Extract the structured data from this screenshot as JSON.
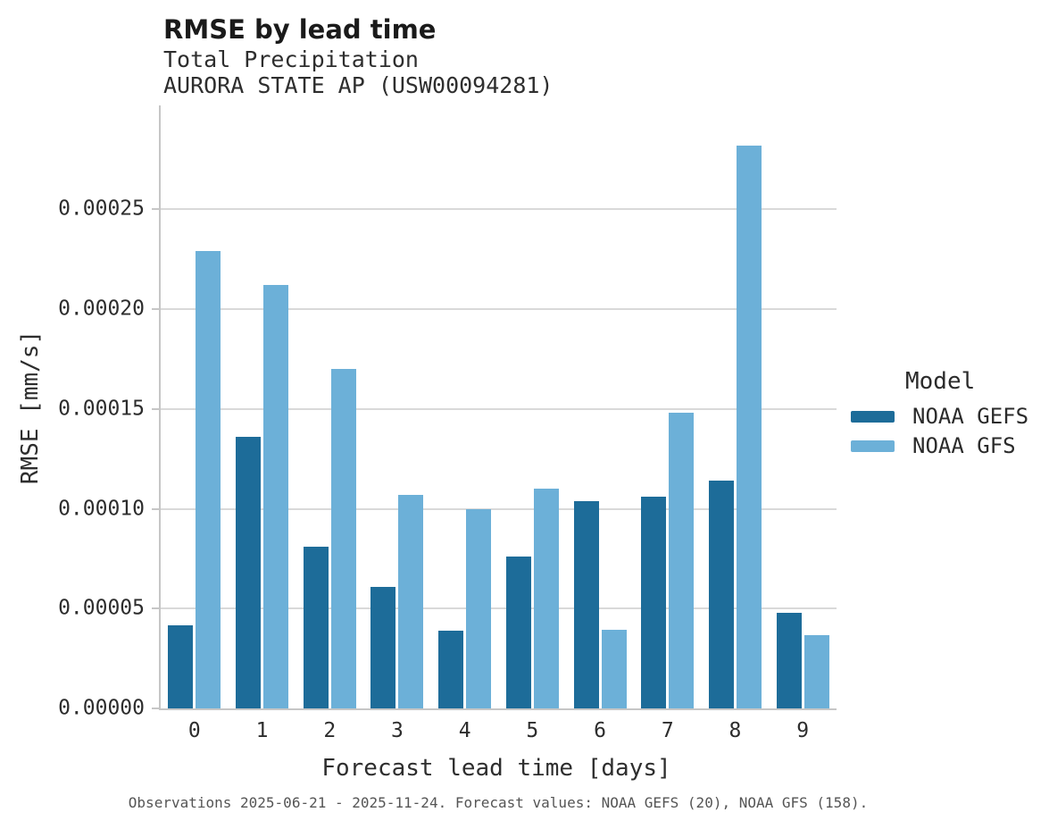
{
  "header": {
    "title": "RMSE by lead time",
    "subtitle": "Total Precipitation",
    "station": "AURORA STATE AP (USW00094281)"
  },
  "legend": {
    "title": "Model",
    "items": [
      {
        "label": "NOAA GEFS",
        "color": "#1d6c99"
      },
      {
        "label": "NOAA GFS",
        "color": "#6cb0d8"
      }
    ]
  },
  "footer": {
    "text": "Observations 2025-06-21 - 2025-11-24. Forecast values: NOAA GEFS (20), NOAA GFS (158)."
  },
  "colors": {
    "gridline": "#d9d9d9",
    "spine": "#c6c6c6",
    "series_dark": "#1d6c99",
    "series_light": "#6cb0d8"
  },
  "chart_data": {
    "type": "bar",
    "title": "RMSE by lead time",
    "subtitle": "Total Precipitation",
    "station": "AURORA STATE AP (USW00094281)",
    "categories": [
      "0",
      "1",
      "2",
      "3",
      "4",
      "5",
      "6",
      "7",
      "8",
      "9"
    ],
    "series": [
      {
        "name": "NOAA GEFS",
        "color": "#1d6c99",
        "values": [
          4.15e-05,
          0.000136,
          8.09e-05,
          6.07e-05,
          3.89e-05,
          7.59e-05,
          0.000104,
          0.000106,
          0.000114,
          4.81e-05
        ]
      },
      {
        "name": "NOAA GFS",
        "color": "#6cb0d8",
        "values": [
          0.000229,
          0.000212,
          0.00017,
          0.000107,
          0.0001,
          0.00011,
          3.92e-05,
          0.000148,
          0.000282,
          3.65e-05
        ]
      }
    ],
    "xlabel": "Forecast lead time [days]",
    "ylabel": "RMSE [mm/s]",
    "ylim": [
      0,
      0.000302
    ],
    "yticks": [
      {
        "value": 0.0,
        "label": "0.00000"
      },
      {
        "value": 5e-05,
        "label": "0.00005"
      },
      {
        "value": 0.0001,
        "label": "0.00010"
      },
      {
        "value": 0.00015,
        "label": "0.00015"
      },
      {
        "value": 0.0002,
        "label": "0.00020"
      },
      {
        "value": 0.00025,
        "label": "0.00025"
      }
    ],
    "grid": "horizontal",
    "legend_position": "right"
  }
}
